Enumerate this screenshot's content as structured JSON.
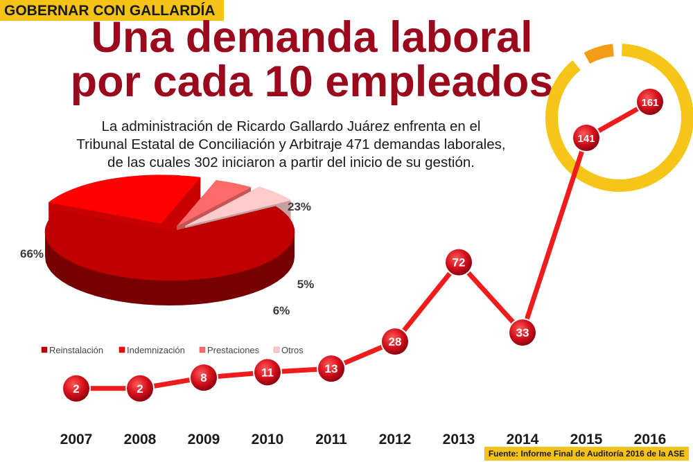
{
  "header": {
    "tag": "GOBERNAR CON GALLARDÍA",
    "title_line1": "Una demanda laboral",
    "title_line2": "por cada 10 empleados",
    "subtitle_line1": "La administración de Ricardo Gallardo Juárez enfrenta en el",
    "subtitle_line2": "Tribunal Estatal de Conciliación y Arbitraje 471 demandas laborales,",
    "subtitle_line3": "de las cuales 302 iniciaron a partir del inicio de su gestión."
  },
  "source": "Fuente: Informe Final de Auditoría 2016 de la ASE",
  "colors": {
    "title": "#990a1c",
    "tag_bg": "#f5c218",
    "line": "#ee1c1c",
    "ring": "#f5c518",
    "ring_accent": "#f39c18"
  },
  "chart_data": [
    {
      "type": "line",
      "x": [
        "2007",
        "2008",
        "2009",
        "2010",
        "2011",
        "2012",
        "2013",
        "2014",
        "2015",
        "2016"
      ],
      "series": [
        {
          "values": [
            2,
            2,
            8,
            11,
            13,
            28,
            72,
            33,
            141,
            161
          ]
        }
      ],
      "data_labels": true,
      "highlight": [
        "2015",
        "2016"
      ]
    },
    {
      "type": "pie",
      "labels": [
        "Reinstalación",
        "Indemnización",
        "Prestaciones",
        "Otros"
      ],
      "values": [
        66,
        23,
        5,
        6
      ],
      "value_labels": [
        "66%",
        "23%",
        "5%",
        "6%"
      ],
      "colors": [
        "#c00000",
        "#ff0000",
        "#ff6b6b",
        "#ffcccc"
      ],
      "legend_position": "bottom"
    }
  ]
}
